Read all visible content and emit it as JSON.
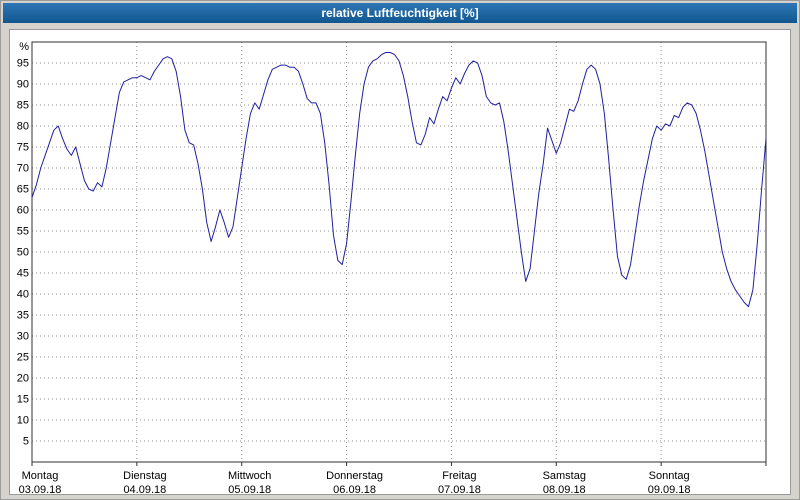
{
  "window": {
    "title": "relative Luftfeuchtigkeit [%]"
  },
  "colors": {
    "titlebar_top": "#2e76b5",
    "titlebar_bottom": "#11568f",
    "line": "#2020a0",
    "grid": "#8f8f8f",
    "plot_border": "#303030"
  },
  "chart_data": {
    "type": "line",
    "title": "relative Luftfeuchtigkeit [%]",
    "ylabel": "%",
    "ylim": [
      0,
      100
    ],
    "y_ticks": [
      5,
      10,
      15,
      20,
      25,
      30,
      35,
      40,
      45,
      50,
      55,
      60,
      65,
      70,
      75,
      80,
      85,
      90,
      95
    ],
    "grid": "dotted",
    "legend": "none",
    "x_hours_span": 168,
    "x_days": [
      {
        "name": "Montag",
        "date": "03.09.18"
      },
      {
        "name": "Dienstag",
        "date": "04.09.18"
      },
      {
        "name": "Mittwoch",
        "date": "05.09.18"
      },
      {
        "name": "Donnerstag",
        "date": "06.09.18"
      },
      {
        "name": "Freitag",
        "date": "07.09.18"
      },
      {
        "name": "Samstag",
        "date": "08.09.18"
      },
      {
        "name": "Sonntag",
        "date": "09.09.18"
      }
    ],
    "series": [
      {
        "name": "relative Luftfeuchtigkeit [%]",
        "color": "#2020a0",
        "sample_interval_hours": 1,
        "values": [
          63,
          66,
          70,
          73,
          76,
          79,
          80,
          77,
          74.5,
          73,
          75,
          71,
          67,
          65,
          64.5,
          66.5,
          65.5,
          70,
          76,
          82,
          88,
          90.5,
          91,
          91.5,
          91.5,
          92,
          91.5,
          91,
          93,
          94.5,
          96,
          96.5,
          96,
          93,
          87,
          79,
          76,
          75.5,
          71,
          65,
          57,
          52.5,
          56,
          60,
          57,
          53.5,
          56,
          63,
          70,
          77,
          83,
          85.5,
          84,
          87.5,
          91,
          93.5,
          94,
          94.5,
          94.5,
          94,
          94,
          93,
          90,
          86.5,
          85.5,
          85.5,
          83,
          76,
          66,
          54,
          48,
          47,
          52,
          62,
          73,
          83,
          90,
          94,
          95.5,
          96,
          97,
          97.5,
          97.5,
          97,
          95.5,
          92,
          87,
          81,
          76,
          75.5,
          78,
          82,
          80.5,
          84,
          87,
          86,
          89,
          91.5,
          90,
          92.5,
          94.5,
          95.5,
          95,
          92,
          87,
          85.5,
          85,
          85.5,
          81,
          74,
          66,
          58,
          50,
          43,
          46,
          55,
          64,
          71,
          79.5,
          76.5,
          73.5,
          76,
          80,
          84,
          83.5,
          86,
          90,
          93.5,
          94.5,
          93.5,
          90,
          83,
          72,
          60,
          49,
          44.5,
          43.5,
          47,
          54,
          61,
          67,
          72,
          77,
          80,
          79,
          80.5,
          80,
          82.5,
          82,
          84.5,
          85.5,
          85,
          83,
          79,
          74,
          68,
          62,
          56,
          50,
          46,
          43,
          41,
          39.5,
          38,
          37,
          41,
          52,
          65,
          77
        ]
      }
    ]
  }
}
